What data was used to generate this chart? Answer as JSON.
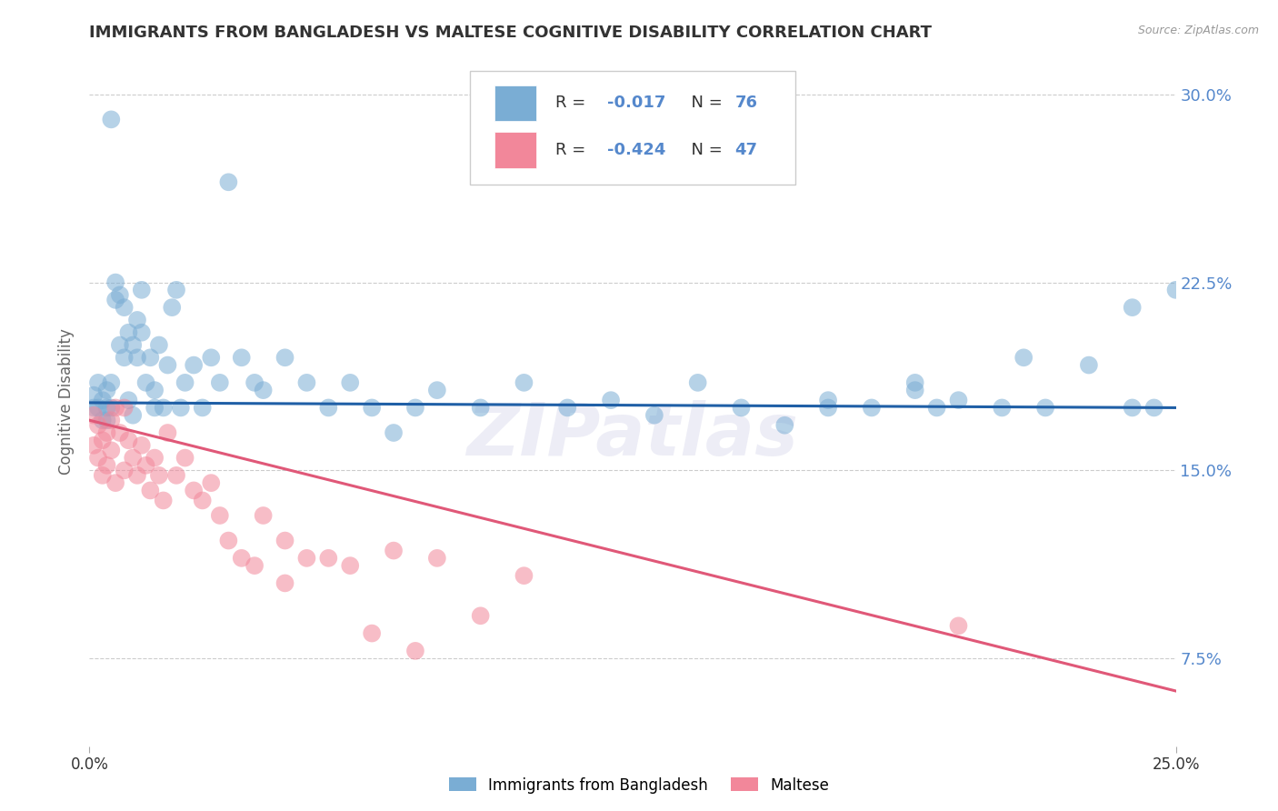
{
  "title": "IMMIGRANTS FROM BANGLADESH VS MALTESE COGNITIVE DISABILITY CORRELATION CHART",
  "source": "Source: ZipAtlas.com",
  "ylabel": "Cognitive Disability",
  "xlim": [
    0.0,
    0.25
  ],
  "ylim": [
    0.04,
    0.315
  ],
  "yticks": [
    0.075,
    0.15,
    0.225,
    0.3
  ],
  "ytick_labels": [
    "7.5%",
    "15.0%",
    "22.5%",
    "30.0%"
  ],
  "xticks": [
    0.0,
    0.25
  ],
  "xtick_labels": [
    "0.0%",
    "25.0%"
  ],
  "blue_color": "#7AADD4",
  "pink_color": "#F2879A",
  "blue_line_color": "#1F5FA6",
  "pink_line_color": "#E05878",
  "R_blue": -0.017,
  "N_blue": 76,
  "R_pink": -0.424,
  "N_pink": 47,
  "blue_scatter_x": [
    0.001,
    0.001,
    0.002,
    0.002,
    0.003,
    0.003,
    0.004,
    0.004,
    0.004,
    0.005,
    0.005,
    0.005,
    0.006,
    0.006,
    0.007,
    0.007,
    0.008,
    0.008,
    0.009,
    0.009,
    0.01,
    0.01,
    0.011,
    0.011,
    0.012,
    0.012,
    0.013,
    0.014,
    0.015,
    0.015,
    0.016,
    0.017,
    0.018,
    0.019,
    0.02,
    0.021,
    0.022,
    0.024,
    0.026,
    0.028,
    0.03,
    0.032,
    0.035,
    0.038,
    0.04,
    0.045,
    0.05,
    0.055,
    0.06,
    0.065,
    0.07,
    0.075,
    0.08,
    0.09,
    0.1,
    0.11,
    0.12,
    0.13,
    0.14,
    0.15,
    0.16,
    0.17,
    0.18,
    0.19,
    0.195,
    0.2,
    0.21,
    0.215,
    0.22,
    0.23,
    0.24,
    0.245,
    0.25,
    0.24,
    0.19,
    0.17
  ],
  "blue_scatter_y": [
    0.175,
    0.18,
    0.175,
    0.185,
    0.17,
    0.178,
    0.175,
    0.182,
    0.17,
    0.185,
    0.175,
    0.29,
    0.225,
    0.218,
    0.22,
    0.2,
    0.215,
    0.195,
    0.205,
    0.178,
    0.2,
    0.172,
    0.21,
    0.195,
    0.222,
    0.205,
    0.185,
    0.195,
    0.182,
    0.175,
    0.2,
    0.175,
    0.192,
    0.215,
    0.222,
    0.175,
    0.185,
    0.192,
    0.175,
    0.195,
    0.185,
    0.265,
    0.195,
    0.185,
    0.182,
    0.195,
    0.185,
    0.175,
    0.185,
    0.175,
    0.165,
    0.175,
    0.182,
    0.175,
    0.185,
    0.175,
    0.178,
    0.172,
    0.185,
    0.175,
    0.168,
    0.178,
    0.175,
    0.182,
    0.175,
    0.178,
    0.175,
    0.195,
    0.175,
    0.192,
    0.215,
    0.175,
    0.222,
    0.175,
    0.185,
    0.175
  ],
  "pink_scatter_x": [
    0.001,
    0.001,
    0.002,
    0.002,
    0.003,
    0.003,
    0.004,
    0.004,
    0.005,
    0.005,
    0.006,
    0.006,
    0.007,
    0.008,
    0.008,
    0.009,
    0.01,
    0.011,
    0.012,
    0.013,
    0.014,
    0.015,
    0.016,
    0.017,
    0.018,
    0.02,
    0.022,
    0.024,
    0.026,
    0.028,
    0.03,
    0.032,
    0.035,
    0.038,
    0.04,
    0.045,
    0.05,
    0.06,
    0.07,
    0.08,
    0.09,
    0.1,
    0.2,
    0.045,
    0.055,
    0.065,
    0.075
  ],
  "pink_scatter_y": [
    0.172,
    0.16,
    0.168,
    0.155,
    0.162,
    0.148,
    0.165,
    0.152,
    0.17,
    0.158,
    0.175,
    0.145,
    0.165,
    0.175,
    0.15,
    0.162,
    0.155,
    0.148,
    0.16,
    0.152,
    0.142,
    0.155,
    0.148,
    0.138,
    0.165,
    0.148,
    0.155,
    0.142,
    0.138,
    0.145,
    0.132,
    0.122,
    0.115,
    0.112,
    0.132,
    0.122,
    0.115,
    0.112,
    0.118,
    0.115,
    0.092,
    0.108,
    0.088,
    0.105,
    0.115,
    0.085,
    0.078
  ],
  "background_color": "#FFFFFF",
  "grid_color": "#CCCCCC",
  "title_color": "#333333",
  "tick_color_right": "#5588CC",
  "watermark_text": "ZIPatlas",
  "legend_label1": "Immigrants from Bangladesh",
  "legend_label2": "Maltese"
}
